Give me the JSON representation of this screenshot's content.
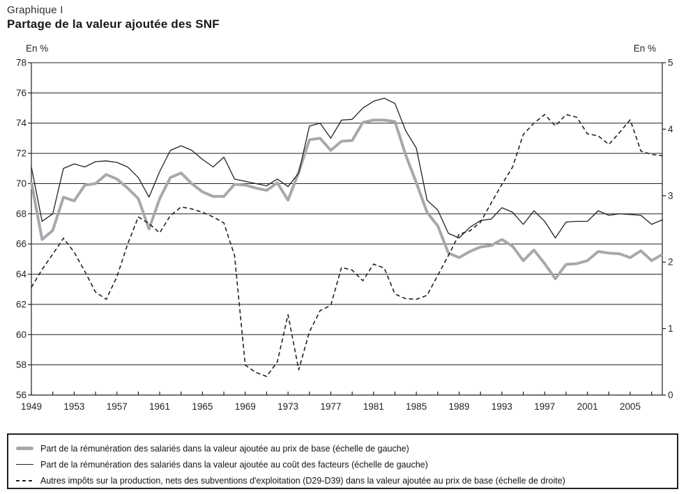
{
  "header": {
    "label": "Graphique I",
    "title": "Partage de la valeur ajoutée des SNF"
  },
  "chart_data": {
    "type": "line",
    "title": "Partage de la valeur ajoutée des SNF",
    "x_start": 1949,
    "x_end": 2008,
    "x_tick_step": 2,
    "x_label_step": 4,
    "x_tick_labels": [
      "1949",
      "1953",
      "1957",
      "1961",
      "1965",
      "1969",
      "1973",
      "1977",
      "1981",
      "1985",
      "1989",
      "1993",
      "1997",
      "2001",
      "2005"
    ],
    "grid": "horizontal",
    "legend_position": "bottom-box",
    "left_axis": {
      "label": "En %",
      "min": 56,
      "max": 78,
      "tick_step": 2
    },
    "right_axis": {
      "label": "En %",
      "min": 0,
      "max": 5,
      "tick_step": 1
    },
    "series": [
      {
        "name": "Part de la rémunération des salariés dans la valeur ajoutée au prix de base (échelle de gauche)",
        "axis": "left",
        "line": "solid",
        "width": 4,
        "color": "#a6a8ab",
        "values": [
          70.1,
          66.3,
          66.9,
          69.1,
          68.85,
          69.9,
          70.0,
          70.6,
          70.3,
          69.7,
          69.0,
          67.0,
          69.0,
          70.4,
          70.7,
          70.0,
          69.45,
          69.15,
          69.15,
          69.95,
          69.9,
          69.7,
          69.55,
          70.05,
          68.9,
          70.75,
          72.9,
          73.0,
          72.2,
          72.8,
          72.85,
          74.05,
          74.2,
          74.2,
          74.1,
          71.9,
          70.05,
          68.1,
          67.2,
          65.4,
          65.1,
          65.5,
          65.8,
          65.9,
          66.3,
          65.85,
          64.9,
          65.6,
          64.7,
          63.7,
          64.65,
          64.7,
          64.9,
          65.5,
          65.4,
          65.35,
          65.1,
          65.55,
          64.9,
          65.3
        ]
      },
      {
        "name": "Part de la rémunération des salariés dans la valeur ajoutée au coût des facteurs (échelle de gauche)",
        "axis": "left",
        "line": "solid",
        "width": 1.3,
        "color": "#231f20",
        "values": [
          71.1,
          67.5,
          68.0,
          71.0,
          71.3,
          71.1,
          71.45,
          71.5,
          71.4,
          71.1,
          70.4,
          69.1,
          70.8,
          72.2,
          72.5,
          72.2,
          71.6,
          71.1,
          71.75,
          70.3,
          70.15,
          70.0,
          69.85,
          70.3,
          69.8,
          70.7,
          73.8,
          74.0,
          73.0,
          74.2,
          74.25,
          75.0,
          75.45,
          75.65,
          75.3,
          73.5,
          72.35,
          68.9,
          68.25,
          66.7,
          66.4,
          67.1,
          67.55,
          67.65,
          68.4,
          68.1,
          67.3,
          68.2,
          67.5,
          66.4,
          67.45,
          67.5,
          67.5,
          68.2,
          67.9,
          68.0,
          67.95,
          67.9,
          67.3,
          67.6
        ]
      },
      {
        "name": "Autres impôts sur la production, nets des subventions d'exploitation (D29-D39) dans la valeur ajoutée au prix de base (échelle de droite)",
        "axis": "right",
        "line": "dashed",
        "width": 1.6,
        "color": "#231f20",
        "values": [
          1.62,
          1.89,
          2.12,
          2.36,
          2.15,
          1.86,
          1.55,
          1.44,
          1.78,
          2.27,
          2.68,
          2.58,
          2.44,
          2.7,
          2.83,
          2.8,
          2.75,
          2.68,
          2.59,
          2.1,
          0.45,
          0.34,
          0.28,
          0.5,
          1.21,
          0.38,
          0.95,
          1.27,
          1.35,
          1.92,
          1.88,
          1.72,
          1.97,
          1.91,
          1.52,
          1.45,
          1.44,
          1.5,
          1.8,
          2.1,
          2.42,
          2.47,
          2.6,
          2.89,
          3.17,
          3.43,
          3.92,
          4.09,
          4.22,
          4.05,
          4.22,
          4.18,
          3.93,
          3.9,
          3.77,
          3.95,
          4.14,
          3.67,
          3.62,
          3.6
        ]
      }
    ]
  },
  "legend": {
    "items": [
      {
        "marker": "thick-gray-line",
        "label": "Part de la rémunération des salariés dans la valeur ajoutée au prix de base (échelle de gauche)"
      },
      {
        "marker": "thin-black-line",
        "label": "Part de la rémunération des salariés dans la valeur ajoutée au coût des facteurs (échelle de gauche)"
      },
      {
        "marker": "dashed-black-line",
        "label": "Autres impôts sur la production, nets des subventions d'exploitation (D29-D39) dans la valeur ajoutée au prix de base (échelle de droite)"
      }
    ]
  }
}
